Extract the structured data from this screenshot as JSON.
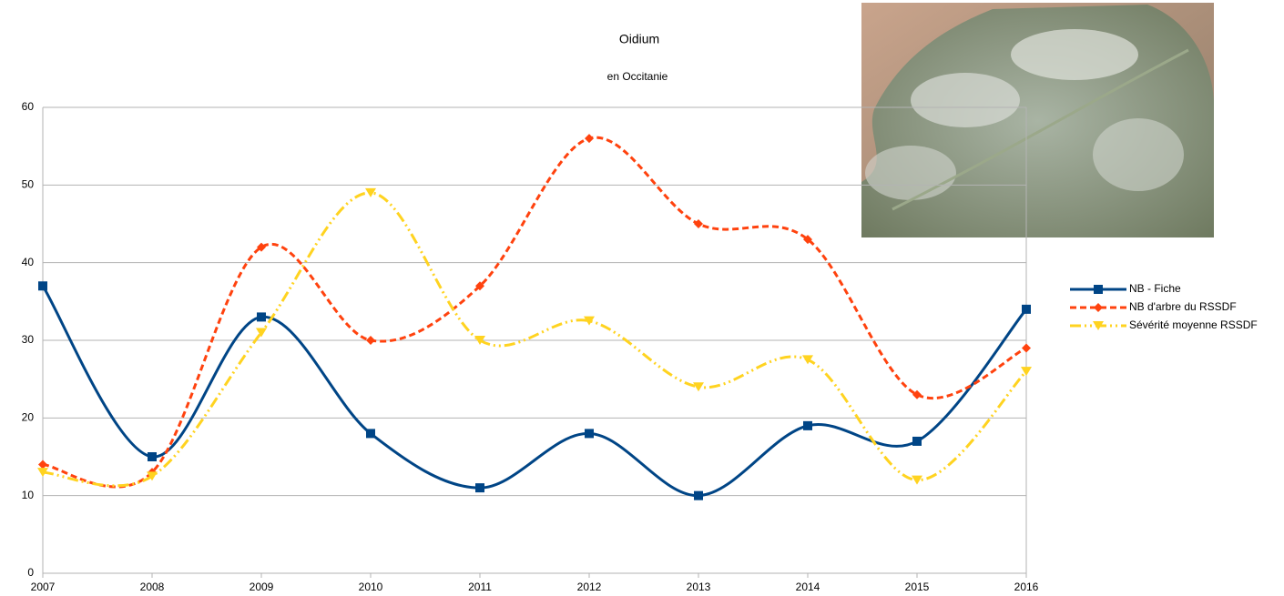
{
  "chart_data": {
    "type": "line",
    "title": "Oidium",
    "subtitle": "en Occitanie",
    "categories": [
      "2007",
      "2008",
      "2009",
      "2010",
      "2011",
      "2012",
      "2013",
      "2014",
      "2015",
      "2016"
    ],
    "series": [
      {
        "name": "NB - Fiche",
        "color": "#004586",
        "marker": "square",
        "dash": "solid",
        "values": [
          37,
          15,
          33,
          18,
          11,
          18,
          10,
          19,
          17,
          34
        ]
      },
      {
        "name": "NB d'arbre du RSSDF",
        "color": "#ff420e",
        "marker": "diamond",
        "dash": "dashed",
        "values": [
          14,
          13,
          42,
          30,
          37,
          56,
          45,
          43,
          23,
          29
        ]
      },
      {
        "name": "Sévérité moyenne RSSDF",
        "color": "#ffd320",
        "marker": "triangle-down",
        "dash": "dash-dot-dot",
        "values": [
          13,
          12.5,
          31,
          49,
          30,
          32.5,
          24,
          27.5,
          12,
          26
        ]
      }
    ],
    "ylim": [
      0,
      60
    ],
    "yticks": [
      0,
      10,
      20,
      30,
      40,
      50,
      60
    ],
    "grid": true,
    "smooth": true,
    "legend": "right"
  }
}
